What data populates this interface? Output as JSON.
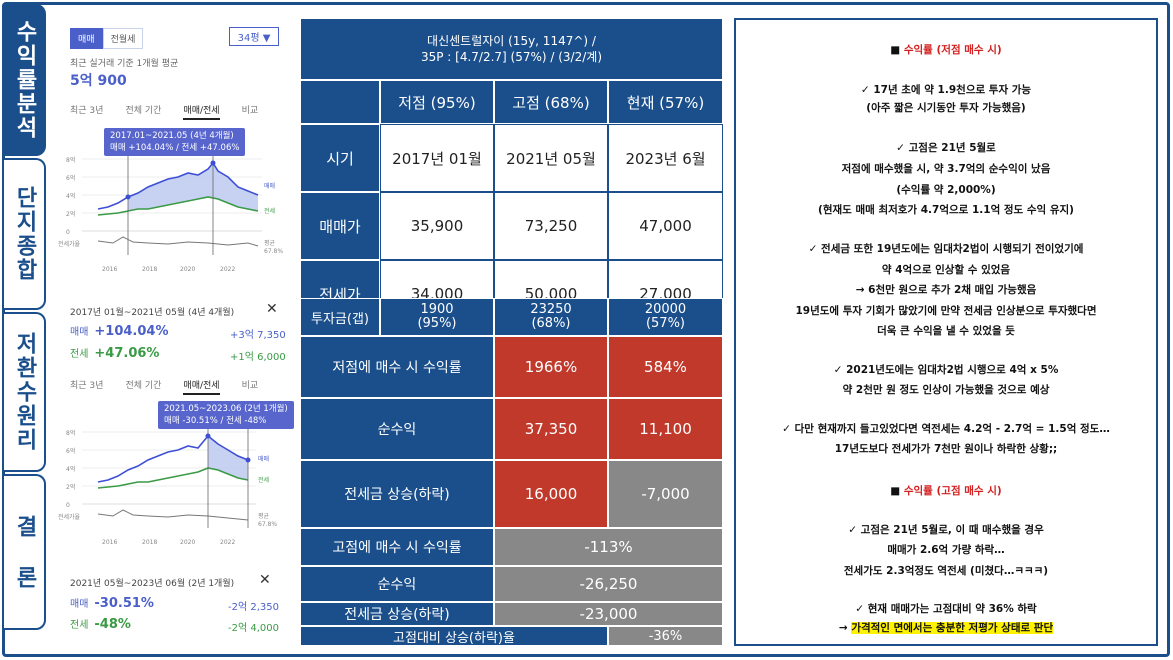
{
  "nav": [
    {
      "label": "수익률분석",
      "active": true
    },
    {
      "label": "단지종합",
      "active": false
    },
    {
      "label": "저환수원리",
      "active": false
    },
    {
      "label": "결 론",
      "active": false
    }
  ],
  "app": {
    "trade_pill": "매매",
    "rent_pill": "전월세",
    "size": "34평 ▼",
    "recent_label": "최근 실거래 기준 1개월 평균",
    "recent_price": "5억 900",
    "tabs": [
      "최근 3년",
      "전체 기간",
      "매매/전세",
      "비교"
    ],
    "chart1": {
      "tooltip_line1": "2017.01~2021.05 (4년 4개월)",
      "tooltip_line2": "매매 +104.04% / 전세 +47.06%",
      "y_ticks": [
        "8억",
        "6억",
        "4억",
        "2억",
        "0"
      ],
      "x_ticks": [
        "2016",
        "2018",
        "2020",
        "2022"
      ],
      "legend_trade": "매매",
      "legend_rent": "전세",
      "ratio_label": "전세가율",
      "avg_label": "평균",
      "avg_value": "67.8%"
    },
    "summary1": {
      "period": "2017년 01월~2021년 05월 (4년 4개월)",
      "trade_label": "매매",
      "trade_pct": "+104.04%",
      "trade_amt": "+3억 7,350",
      "rent_label": "전세",
      "rent_pct": "+47.06%",
      "rent_amt": "+1억 6,000"
    },
    "chart2": {
      "tooltip_line1": "2021.05~2023.06 (2년 1개월)",
      "tooltip_line2": "매매 -30.51% / 전세 -48%",
      "y_ticks": [
        "8억",
        "6억",
        "4억",
        "2억",
        "0"
      ],
      "x_ticks": [
        "2016",
        "2018",
        "2020",
        "2022"
      ],
      "legend_trade": "매매",
      "legend_rent": "전세",
      "ratio_label": "전세가율",
      "avg_label": "평균",
      "avg_value": "67.8%"
    },
    "summary2": {
      "period": "2021년 05월~2023년 06월 (2년 1개월)",
      "trade_label": "매매",
      "trade_pct": "-30.51%",
      "trade_amt": "-2억 2,350",
      "rent_label": "전세",
      "rent_pct": "-48%",
      "rent_amt": "-2억 4,000"
    }
  },
  "table": {
    "title_line1": "대신센트럴자이 (15y, 1147^) /",
    "title_line2": "35P : [4.7/2.7] (57%) / (3/2/계)",
    "col_headers": [
      "저점 (95%)",
      "고점 (68%)",
      "현재 (57%)"
    ],
    "rows": [
      {
        "label": "시기",
        "values": [
          "2017년 01월",
          "2021년 05월",
          "2023년 6월"
        ]
      },
      {
        "label": "매매가",
        "values": [
          "35,900",
          "73,250",
          "47,000"
        ]
      },
      {
        "label": "전세가",
        "values": [
          "34,000",
          "50,000",
          "27,000"
        ]
      },
      {
        "label": "투자금(갭)",
        "values": [
          "1900\n(95%)",
          "23250\n(68%)",
          "20000\n(57%)"
        ]
      }
    ],
    "low_rows": [
      {
        "label": "저점에 매수 시 수익률",
        "values": [
          "1966%",
          "584%"
        ]
      },
      {
        "label": "순수익",
        "values": [
          "37,350",
          "11,100"
        ]
      },
      {
        "label": "전세금 상승(하락)",
        "values": [
          "16,000",
          "-7,000"
        ]
      }
    ],
    "high_rows": [
      {
        "label": "고점에 매수 시 수익률",
        "value": "-113%"
      },
      {
        "label": "순수익",
        "value": "-26,250"
      },
      {
        "label": "전세금 상승(하락)",
        "value": "-23,000"
      }
    ],
    "last_row": {
      "label": "고점대비 상승(하락)율",
      "value": "-36%"
    }
  },
  "notes": {
    "h1_prefix": "■ ",
    "h1": "수익률 (저점 매수 시)",
    "p1": [
      "✓ 17년 초에 약 1.9천으로 투자 가능",
      "(아주 짧은 시기동안 투자 가능했음)"
    ],
    "p2": [
      "✓ 고점은 21년 5월로",
      "저점에 매수했을 시, 약 3.7억의 순수익이 났음",
      "(수익률 약 2,000%)",
      "(현재도 매매 최저호가 4.7억으로 1.1억 정도 수익 유지)"
    ],
    "p3": [
      "✓ 전세금 또한 19년도에는 임대차2법이 시행되기 전이었기에",
      "약 4억으로 인상할 수 있었음",
      "→ 6천만 원으로 추가 2채 매입 가능했음",
      "19년도에 투자 기회가 많았기에 만약 전세금 인상분으로 투자했다면",
      "더욱 큰 수익을 낼 수 있었을 듯"
    ],
    "p4": [
      "✓ 2021년도에는 임대차2법 시행으로 4억 x 5%",
      "약 2천만 원 정도 인상이 가능했을 것으로 예상"
    ],
    "p5": [
      "✓ 다만 현재까지 들고있었다면 역전세는 4.2억 - 2.7억 = 1.5억 정도…",
      "17년도보다 전세가가 7천만 원이나 하락한 상황;;"
    ],
    "h2_prefix": "■ ",
    "h2": "수익률 (고점 매수 시)",
    "p6": [
      "✓ 고점은 21년 5월로, 이 때 매수했을 경우",
      "매매가 2.6억 가량 하락…",
      "전세가도 2.3억정도 역전세 (미쳤다…ㅋㅋㅋ)"
    ],
    "p7_1": "✓ 현재 매매가는 고점대비 약 36% 하락",
    "p7_2_prefix": "→ ",
    "p7_2": "가격적인 면에서는 충분한 저평가 상태로 판단"
  },
  "colors": {
    "navy": "#1a4f8c",
    "red": "#c0392b",
    "gray": "#888888",
    "trade": "#4a5fc9",
    "rent": "#3a9a45"
  }
}
